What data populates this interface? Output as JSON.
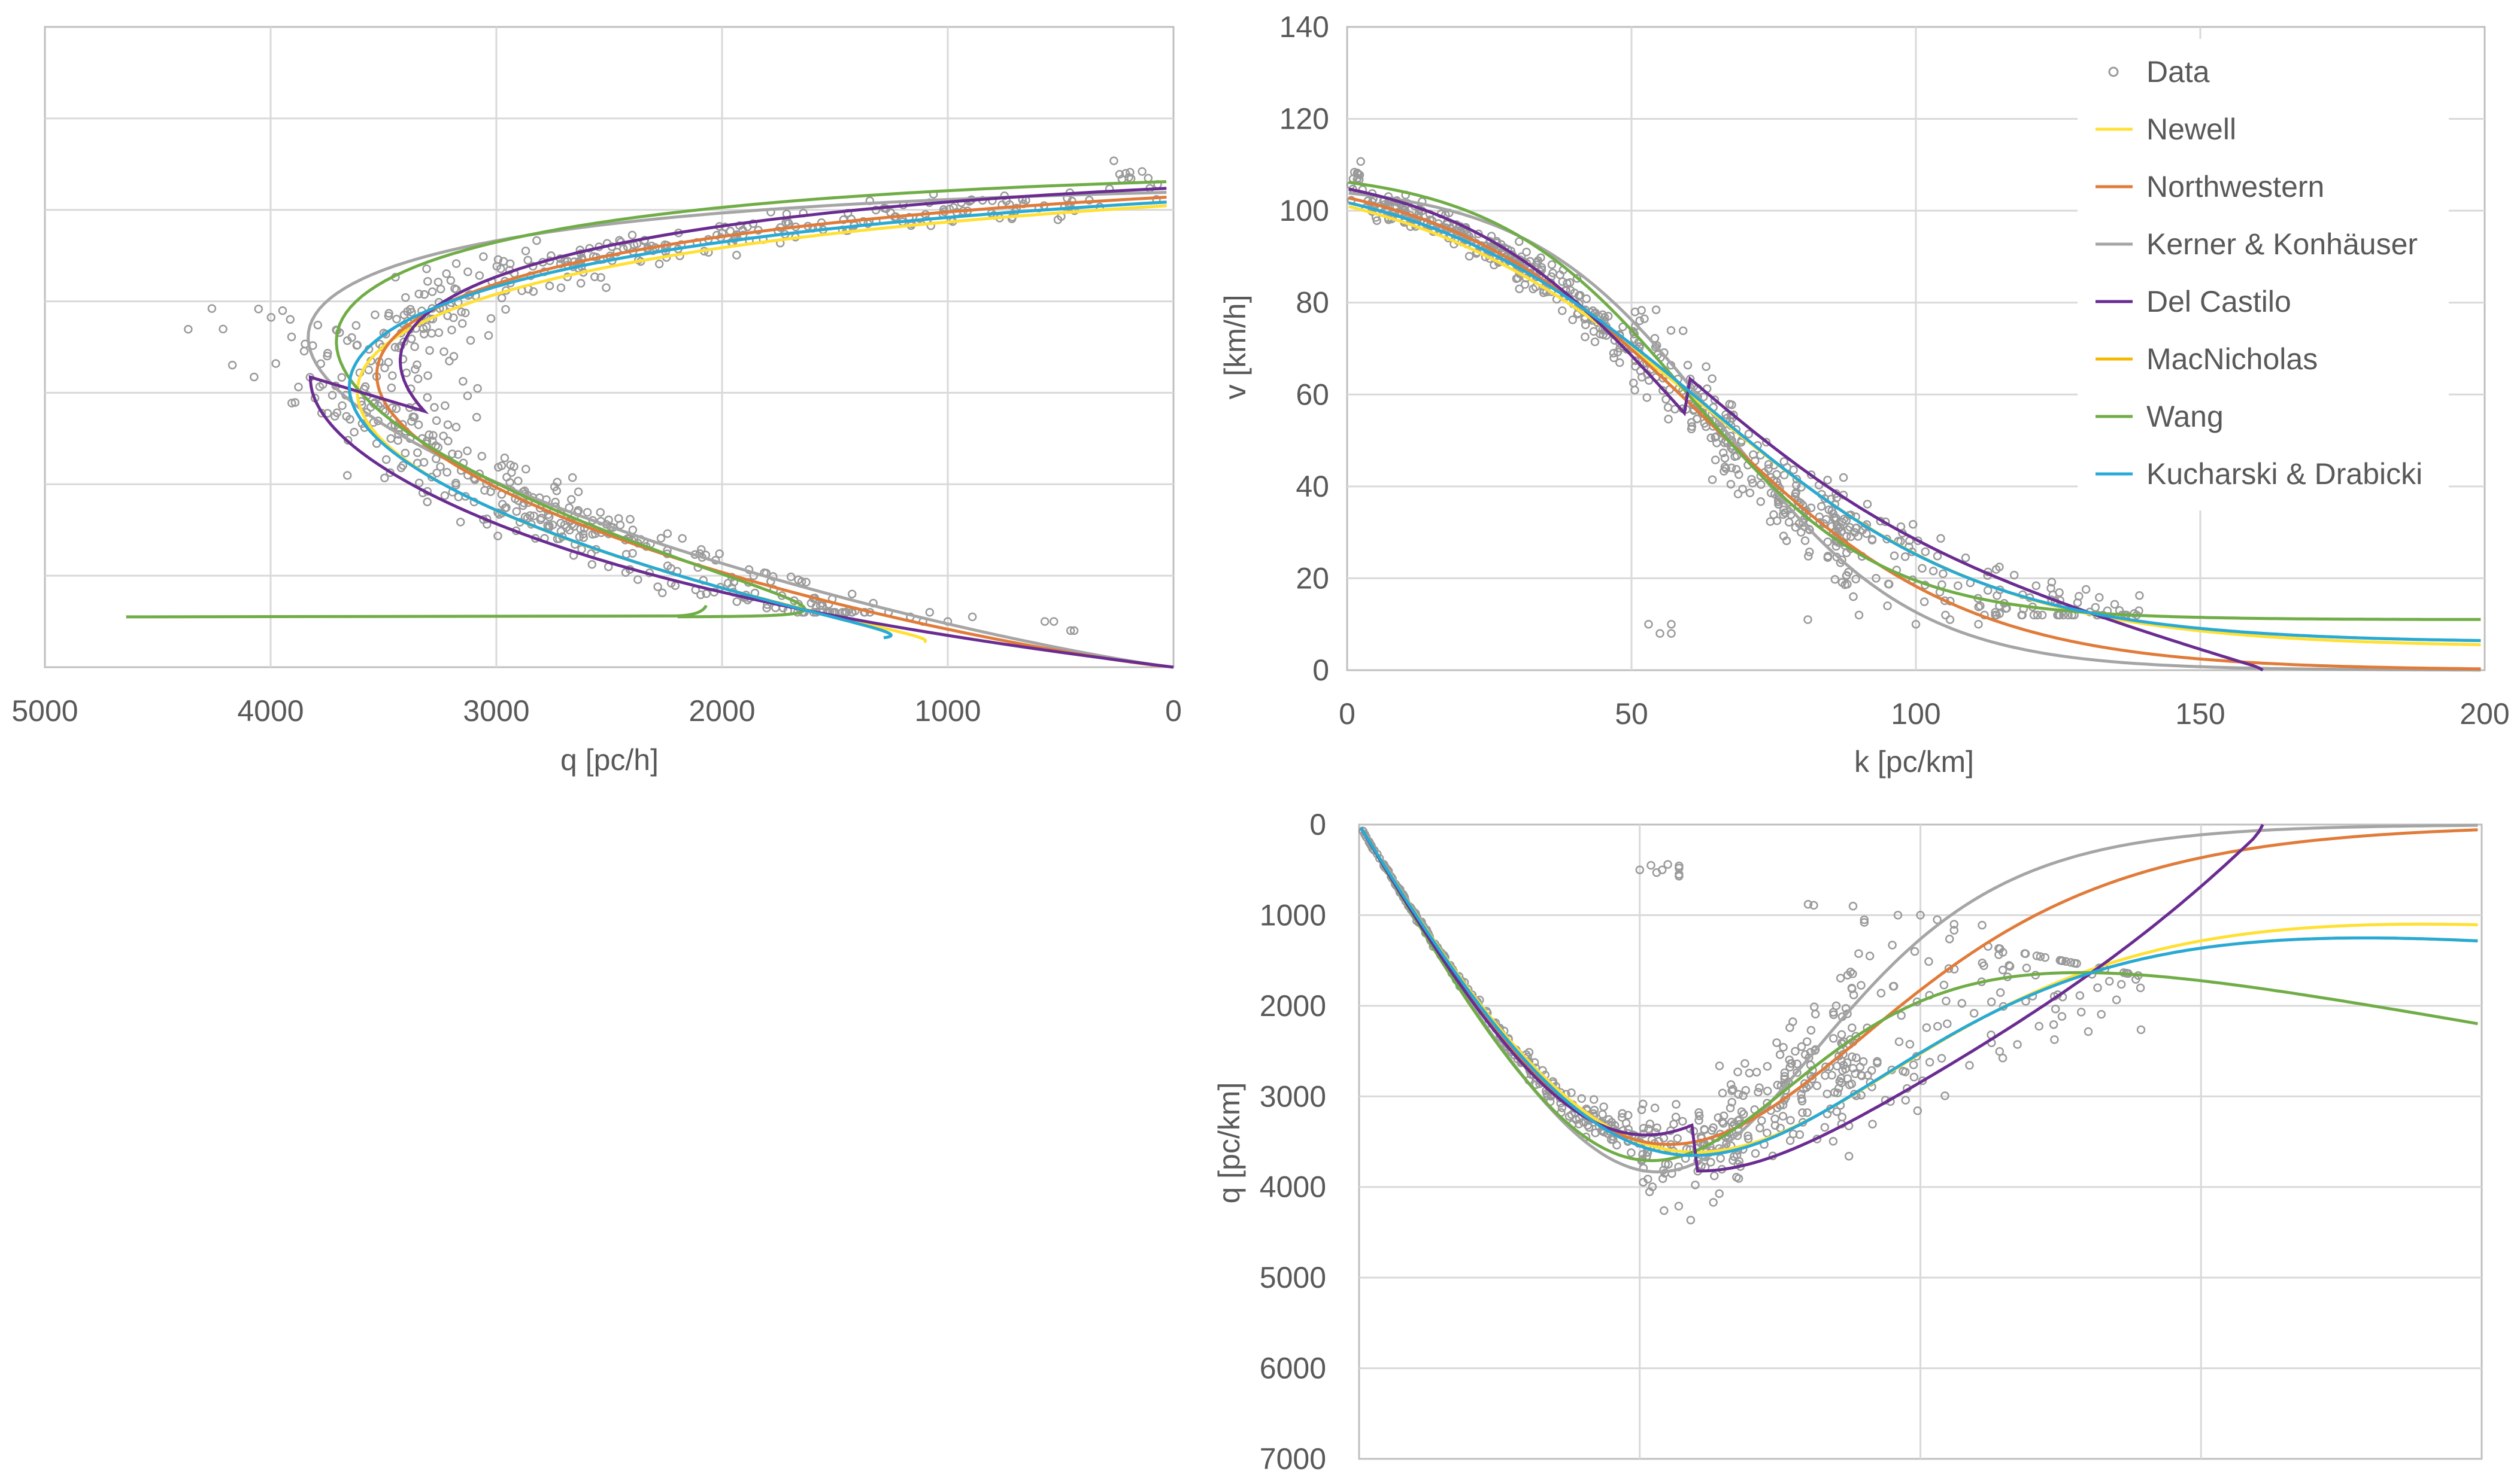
{
  "palette": {
    "data": "#9a9a9a",
    "grid": "#d9d9d9",
    "axis": "#bfbfbf",
    "text": "#595959",
    "background": "#ffffff"
  },
  "legend": {
    "position": "top-right of chart-2",
    "entries": [
      {
        "label": "Data",
        "color": "#9a9a9a",
        "kind": "marker"
      },
      {
        "label": "Newell",
        "color": "#ffe033",
        "kind": "line"
      },
      {
        "label": "Northwestern",
        "color": "#e07b39",
        "kind": "line"
      },
      {
        "label": "Kerner & Konhäuser",
        "color": "#a5a5a5",
        "kind": "line"
      },
      {
        "label": "Del Castilo",
        "color": "#6a2c91",
        "kind": "line"
      },
      {
        "label": "MacNicholas",
        "color": "#f5b800",
        "kind": "line"
      },
      {
        "label": "Wang",
        "color": "#70ad47",
        "kind": "line"
      },
      {
        "label": "Kucharski & Drabicki",
        "color": "#27aad8",
        "kind": "line"
      }
    ]
  },
  "chart_data": [
    {
      "id": "chart-1",
      "type": "scatter",
      "title": "",
      "xlabel": "q [pc/h]",
      "ylabel": "",
      "xlim": [
        5000,
        0
      ],
      "ylim": [
        0,
        140
      ],
      "x_reversed": true,
      "xticks": [
        5000,
        4000,
        3000,
        2000,
        1000,
        0
      ],
      "yticks": [],
      "grid": true,
      "description_series": "speed vs flow; data cloud plus fitted model curves (same models as legend)",
      "wang_extra_branch": {
        "v": 11,
        "q_from": 2090,
        "q_to": 4640
      }
    },
    {
      "id": "chart-2",
      "type": "scatter",
      "title": "",
      "xlabel": "k [pc/km]",
      "ylabel": "v [km/h]",
      "xlim": [
        0,
        200
      ],
      "ylim": [
        0,
        140
      ],
      "xticks": [
        0,
        50,
        100,
        150,
        200
      ],
      "yticks": [
        0,
        20,
        40,
        60,
        80,
        100,
        120,
        140
      ],
      "grid": true,
      "series": [
        {
          "name": "Newell",
          "vf": 109.5,
          "kc": 63,
          "spread": 26,
          "mode": "logistic",
          "floor": 5
        },
        {
          "name": "Northwestern",
          "vf": 109.5,
          "kc": 63,
          "spread": 23,
          "mode": "logistic",
          "floor": 0
        },
        {
          "name": "Kerner & Konhäuser",
          "vf": 106,
          "kc": 66,
          "spread": 17,
          "mode": "logistic",
          "floor": 0
        },
        {
          "name": "Del Castilo",
          "vf": 110,
          "kc": 60,
          "spread": 20,
          "mode": "castillo",
          "kjam": 161
        },
        {
          "name": "MacNicholas",
          "vf": 109.5,
          "kc": 63,
          "spread": 25,
          "mode": "logistic",
          "floor": 6
        },
        {
          "name": "Wang",
          "vf": 109,
          "kc": 60,
          "spread": 17,
          "mode": "logistic",
          "floor": 11
        },
        {
          "name": "Kucharski & Drabicki",
          "vf": 109.5,
          "kc": 63,
          "spread": 25,
          "mode": "logistic",
          "floor": 6
        }
      ],
      "data_outliers": [
        [
          53,
          10
        ],
        [
          55,
          8
        ],
        [
          57,
          10
        ],
        [
          57,
          8
        ],
        [
          81,
          11
        ],
        [
          87,
          24
        ],
        [
          89,
          16
        ],
        [
          90,
          12
        ],
        [
          93,
          20
        ],
        [
          95,
          14
        ],
        [
          100,
          10
        ],
        [
          106,
          11
        ],
        [
          111,
          10
        ]
      ]
    },
    {
      "id": "chart-3",
      "type": "scatter",
      "title": "",
      "xlabel": "",
      "ylabel": "q [pc/km]",
      "xlim": [
        0,
        200
      ],
      "ylim": [
        7000,
        0
      ],
      "y_reversed": true,
      "xticks": [],
      "yticks": [
        0,
        1000,
        2000,
        3000,
        4000,
        5000,
        6000,
        7000
      ],
      "grid": true,
      "data_outliers": [
        [
          50,
          500
        ],
        [
          52,
          450
        ],
        [
          54,
          500
        ],
        [
          57,
          480
        ],
        [
          57,
          550
        ],
        [
          80,
          880
        ],
        [
          88,
          900
        ],
        [
          90,
          1050
        ],
        [
          96,
          1000
        ],
        [
          103,
          1050
        ],
        [
          106,
          1100
        ],
        [
          91,
          1450
        ],
        [
          99,
          1400
        ],
        [
          85,
          2000
        ],
        [
          88,
          2400
        ]
      ],
      "curve_endpoints_at_k200": {
        "Northwestern": 100,
        "Kerner & Konhäuser": 10,
        "MacNicholas": 1000,
        "Wang": 2400,
        "Kucharski & Drabicki": 1200
      }
    }
  ]
}
